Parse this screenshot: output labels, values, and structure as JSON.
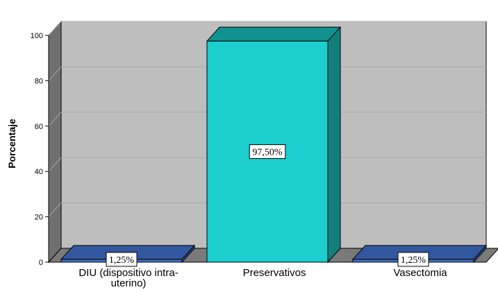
{
  "chart_data": {
    "type": "bar",
    "title": "",
    "xlabel": "",
    "ylabel": "Porcentaje",
    "ylim": [
      0,
      100
    ],
    "yticks": [
      0,
      20,
      40,
      60,
      80,
      100
    ],
    "grid": true,
    "three_d": true,
    "categories": [
      {
        "lines": [
          "DIU (dispositivo intra-",
          "uterino)"
        ]
      },
      {
        "lines": [
          "Preservativos"
        ]
      },
      {
        "lines": [
          "Vasectomia"
        ]
      }
    ],
    "values": [
      1.25,
      97.5,
      1.25
    ],
    "data_labels": [
      "1,25%",
      "97,50%",
      "1,25%"
    ],
    "colors": {
      "wall": "#bebebe",
      "side_wall": "#6f6f6f",
      "floor": "#7a7a7a",
      "gridline": "#a9a9a9",
      "bars": [
        "#4472c4",
        "#1ccece",
        "#4472c4"
      ],
      "bars_top": [
        "#33579e",
        "#12928f",
        "#33579e"
      ],
      "bars_side": [
        "#2b4a86",
        "#117f7c",
        "#2b4a86"
      ]
    }
  }
}
